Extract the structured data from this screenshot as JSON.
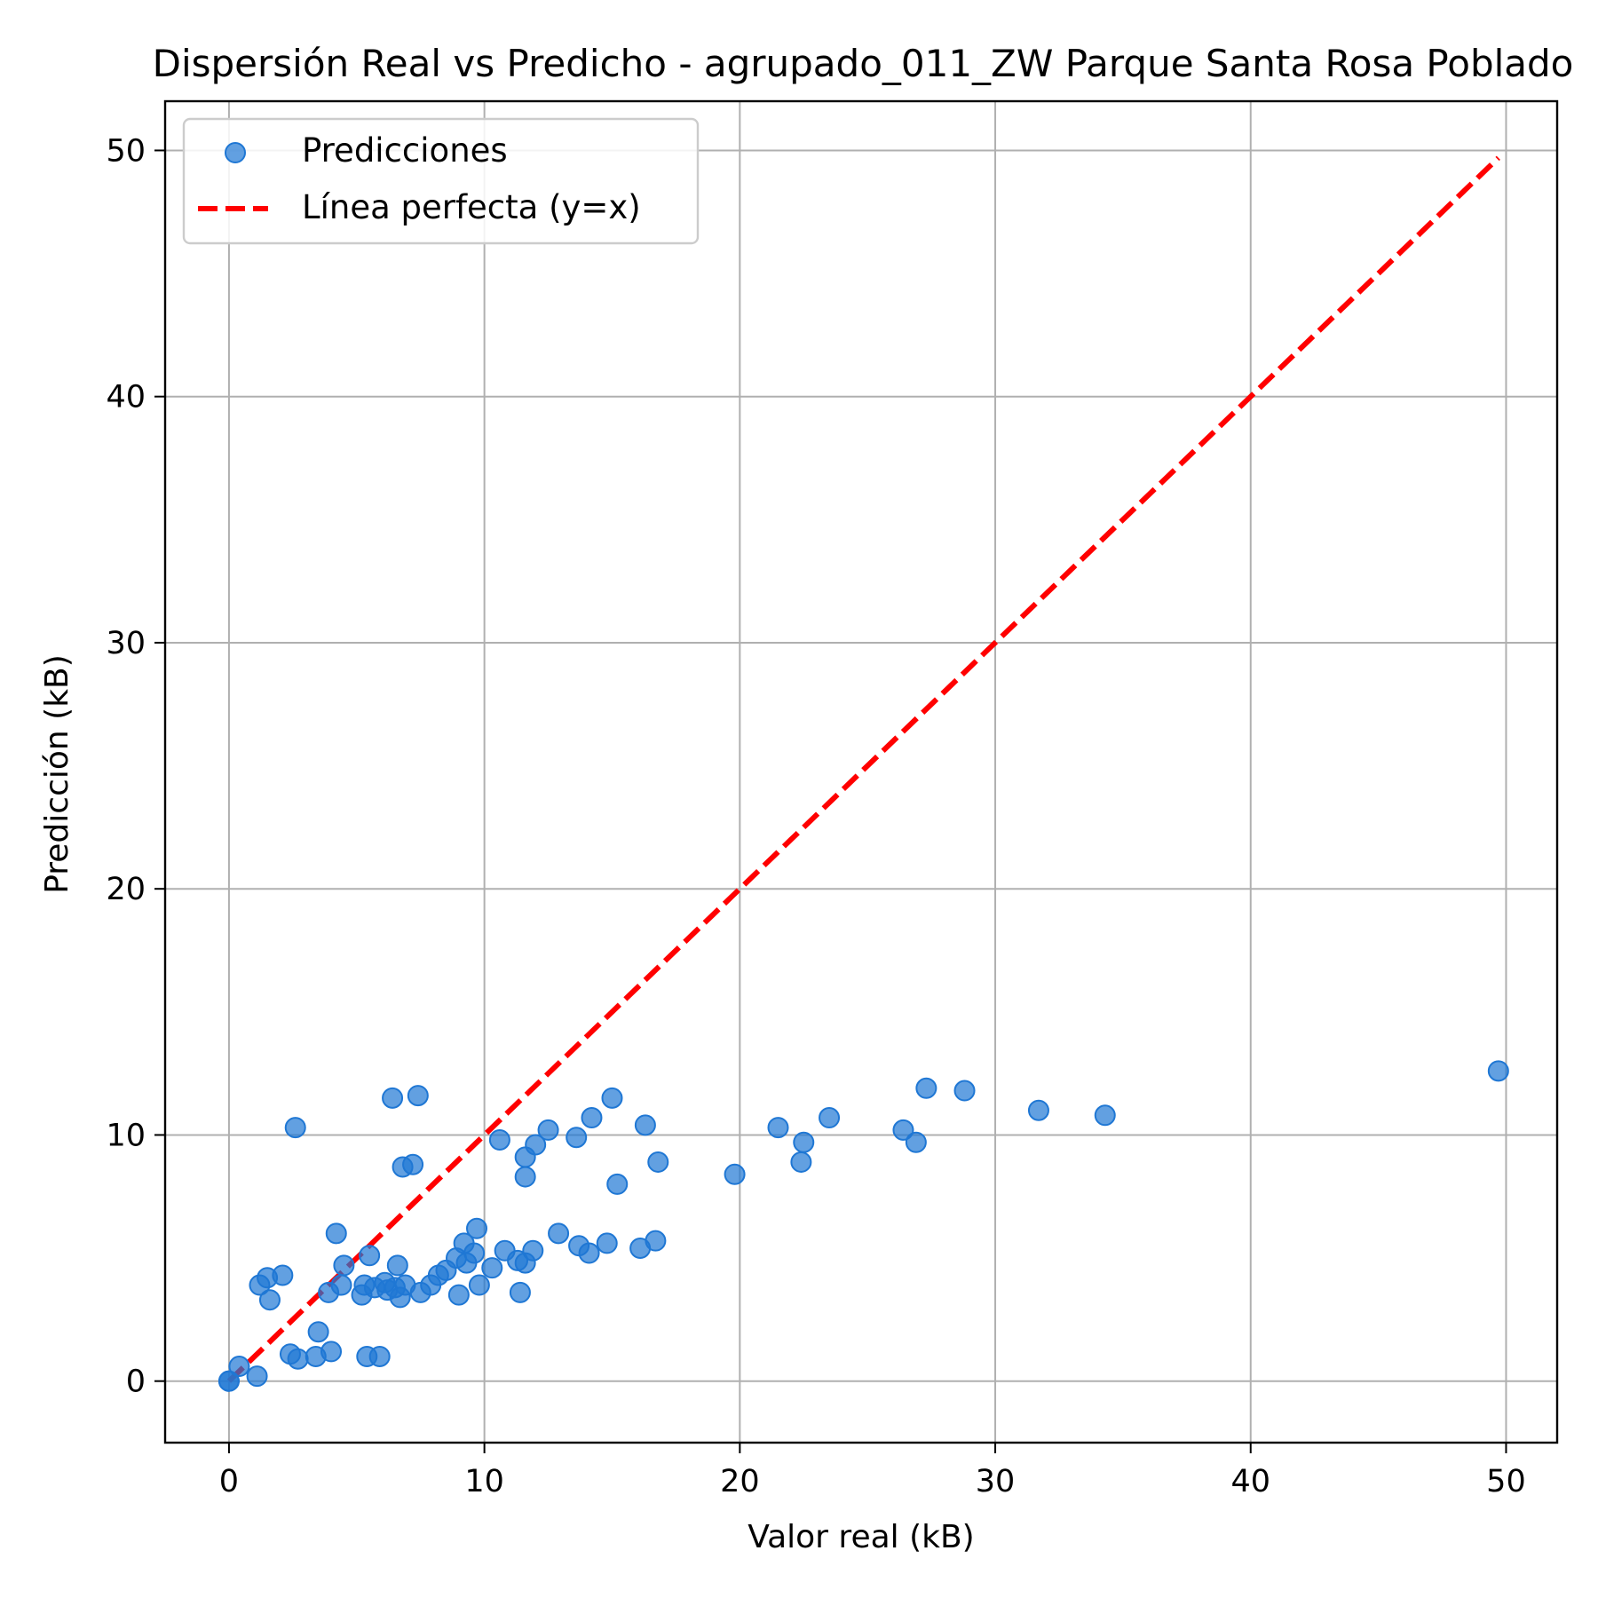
{
  "chart_data": {
    "type": "scatter",
    "title": "Dispersión Real vs Predicho - agrupado_011_ZW Parque Santa Rosa Poblado",
    "xlabel": "Valor real (kB)",
    "ylabel": "Predicción (kB)",
    "xlim": [
      -2.5,
      52
    ],
    "ylim": [
      -2.5,
      52
    ],
    "xticks": [
      0,
      10,
      20,
      30,
      40,
      50
    ],
    "yticks": [
      0,
      10,
      20,
      30,
      40,
      50
    ],
    "xtick_labels": [
      "0",
      "10",
      "20",
      "30",
      "40",
      "50"
    ],
    "ytick_labels": [
      "0",
      "10",
      "20",
      "30",
      "40",
      "50"
    ],
    "grid": true,
    "legend_position": "upper-left",
    "series": [
      {
        "name": "Predicciones",
        "kind": "scatter",
        "color": "#1f77d4",
        "points": [
          [
            0,
            0
          ],
          [
            0,
            0
          ],
          [
            0.4,
            0.6
          ],
          [
            1.1,
            0.2
          ],
          [
            1.2,
            3.9
          ],
          [
            1.5,
            4.2
          ],
          [
            1.6,
            3.3
          ],
          [
            2.1,
            4.3
          ],
          [
            2.4,
            1.1
          ],
          [
            2.6,
            10.3
          ],
          [
            2.7,
            0.9
          ],
          [
            3.4,
            1.0
          ],
          [
            3.5,
            2.0
          ],
          [
            3.9,
            3.6
          ],
          [
            4.0,
            1.2
          ],
          [
            4.2,
            6.0
          ],
          [
            4.4,
            3.9
          ],
          [
            4.5,
            4.7
          ],
          [
            5.2,
            3.5
          ],
          [
            5.3,
            3.9
          ],
          [
            5.4,
            1.0
          ],
          [
            5.5,
            5.1
          ],
          [
            5.7,
            3.8
          ],
          [
            5.9,
            1.0
          ],
          [
            6.1,
            4.0
          ],
          [
            6.2,
            3.7
          ],
          [
            6.4,
            11.5
          ],
          [
            6.5,
            3.8
          ],
          [
            6.6,
            4.7
          ],
          [
            6.7,
            3.4
          ],
          [
            6.8,
            8.7
          ],
          [
            6.9,
            3.9
          ],
          [
            7.2,
            8.8
          ],
          [
            7.4,
            11.6
          ],
          [
            7.5,
            3.6
          ],
          [
            7.9,
            3.9
          ],
          [
            8.2,
            4.3
          ],
          [
            8.5,
            4.5
          ],
          [
            8.9,
            5.0
          ],
          [
            9.0,
            3.5
          ],
          [
            9.2,
            5.6
          ],
          [
            9.3,
            4.8
          ],
          [
            9.6,
            5.2
          ],
          [
            9.7,
            6.2
          ],
          [
            9.8,
            3.9
          ],
          [
            10.3,
            4.6
          ],
          [
            10.6,
            9.8
          ],
          [
            10.8,
            5.3
          ],
          [
            11.3,
            4.9
          ],
          [
            11.4,
            3.6
          ],
          [
            11.6,
            8.3
          ],
          [
            11.6,
            9.1
          ],
          [
            11.6,
            4.8
          ],
          [
            11.9,
            5.3
          ],
          [
            12.0,
            9.6
          ],
          [
            12.5,
            10.2
          ],
          [
            12.9,
            6.0
          ],
          [
            13.6,
            9.9
          ],
          [
            13.7,
            5.5
          ],
          [
            14.1,
            5.2
          ],
          [
            14.2,
            10.7
          ],
          [
            14.8,
            5.6
          ],
          [
            15.0,
            11.5
          ],
          [
            15.2,
            8.0
          ],
          [
            16.1,
            5.4
          ],
          [
            16.3,
            10.4
          ],
          [
            16.7,
            5.7
          ],
          [
            16.8,
            8.9
          ],
          [
            19.8,
            8.4
          ],
          [
            21.5,
            10.3
          ],
          [
            22.4,
            8.9
          ],
          [
            22.5,
            9.7
          ],
          [
            23.5,
            10.7
          ],
          [
            26.4,
            10.2
          ],
          [
            26.9,
            9.7
          ],
          [
            27.3,
            11.9
          ],
          [
            28.8,
            11.8
          ],
          [
            31.7,
            11.0
          ],
          [
            34.3,
            10.8
          ],
          [
            49.7,
            12.6
          ]
        ]
      },
      {
        "name": "Línea perfecta (y=x)",
        "kind": "line",
        "style": "dashed",
        "color": "#ff0000",
        "x": [
          0,
          49.7
        ],
        "y": [
          0,
          49.7
        ]
      }
    ]
  }
}
